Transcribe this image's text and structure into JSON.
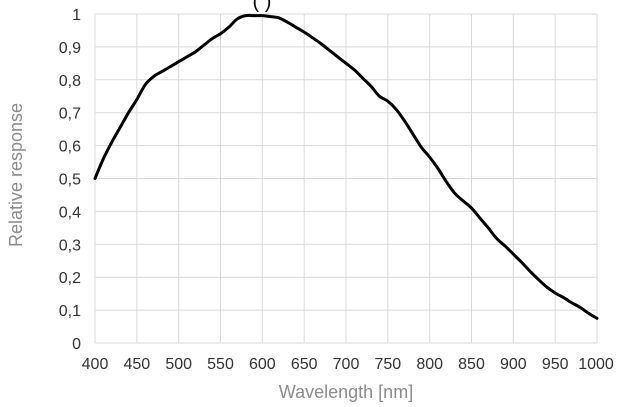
{
  "chart_data": {
    "type": "line",
    "title_fragment": "(                   )",
    "xlabel": "Wavelength [nm]",
    "ylabel": "Relative response",
    "xlim": [
      400,
      1000
    ],
    "ylim": [
      0,
      1
    ],
    "x_ticks": [
      400,
      450,
      500,
      550,
      600,
      650,
      700,
      750,
      800,
      850,
      900,
      950,
      1000
    ],
    "x_tick_labels": [
      "400",
      "450",
      "500",
      "550",
      "600",
      "650",
      "700",
      "750",
      "800",
      "850",
      "900",
      "950",
      "1000"
    ],
    "y_ticks": [
      0,
      0.1,
      0.2,
      0.3,
      0.4,
      0.5,
      0.6,
      0.7,
      0.8,
      0.9,
      1
    ],
    "y_tick_labels": [
      "0",
      "0,1",
      "0,2",
      "0,3",
      "0,4",
      "0,5",
      "0,6",
      "0,7",
      "0,8",
      "0,9",
      "1"
    ],
    "grid": true,
    "legend": "none",
    "series": [
      {
        "color": "#000000",
        "x": [
          400,
          410,
          420,
          430,
          440,
          450,
          460,
          470,
          480,
          490,
          500,
          510,
          520,
          530,
          540,
          550,
          560,
          570,
          580,
          590,
          600,
          610,
          620,
          630,
          640,
          650,
          660,
          670,
          680,
          690,
          700,
          710,
          720,
          730,
          740,
          750,
          760,
          770,
          780,
          790,
          800,
          810,
          820,
          830,
          840,
          850,
          860,
          870,
          880,
          890,
          900,
          910,
          920,
          930,
          940,
          950,
          960,
          970,
          980,
          990,
          1000
        ],
        "values": [
          0.5,
          0.56,
          0.61,
          0.655,
          0.7,
          0.74,
          0.785,
          0.81,
          0.825,
          0.84,
          0.855,
          0.87,
          0.885,
          0.905,
          0.925,
          0.94,
          0.96,
          0.985,
          0.995,
          0.995,
          0.995,
          0.992,
          0.988,
          0.975,
          0.96,
          0.945,
          0.928,
          0.91,
          0.89,
          0.87,
          0.85,
          0.83,
          0.805,
          0.78,
          0.75,
          0.735,
          0.71,
          0.675,
          0.635,
          0.595,
          0.565,
          0.53,
          0.49,
          0.455,
          0.432,
          0.41,
          0.38,
          0.35,
          0.318,
          0.295,
          0.27,
          0.245,
          0.218,
          0.193,
          0.17,
          0.152,
          0.138,
          0.122,
          0.108,
          0.09,
          0.075
        ]
      }
    ]
  }
}
